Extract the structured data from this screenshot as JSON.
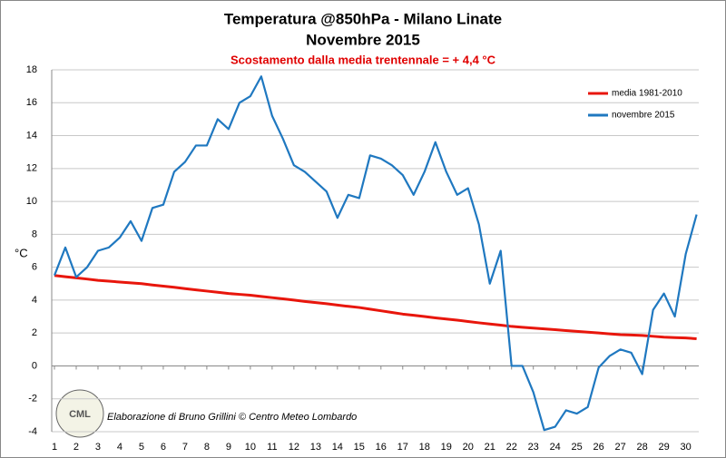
{
  "chart_data": {
    "type": "line",
    "title": "Temperatura @850hPa - Milano Linate",
    "subtitle": "Novembre 2015",
    "annotation": "Scostamento dalla media trentennale = + 4,4 °C",
    "credit": "Elaborazione di Bruno Grillini  ©  Centro Meteo Lombardo",
    "logo_text": "CML",
    "y_label": "°C",
    "x": [
      1,
      1.5,
      2,
      2.5,
      3,
      3.5,
      4,
      4.5,
      5,
      5.5,
      6,
      6.5,
      7,
      7.5,
      8,
      8.5,
      9,
      9.5,
      10,
      10.5,
      11,
      11.5,
      12,
      12.5,
      13,
      13.5,
      14,
      14.5,
      15,
      15.5,
      16,
      16.5,
      17,
      17.5,
      18,
      18.5,
      19,
      19.5,
      20,
      20.5,
      21,
      21.5,
      22,
      22.5,
      23,
      23.5,
      24,
      24.5,
      25,
      25.5,
      26,
      26.5,
      27,
      27.5,
      28,
      28.5,
      29,
      29.5,
      30,
      30.5
    ],
    "series": [
      {
        "name": "media 1981-2010",
        "color": "#e8160c",
        "values": [
          5.5,
          5.42,
          5.35,
          5.28,
          5.2,
          5.15,
          5.1,
          5.05,
          5.0,
          4.92,
          4.85,
          4.78,
          4.7,
          4.62,
          4.55,
          4.48,
          4.4,
          4.35,
          4.3,
          4.22,
          4.15,
          4.08,
          4.0,
          3.92,
          3.85,
          3.78,
          3.7,
          3.62,
          3.55,
          3.45,
          3.35,
          3.25,
          3.15,
          3.08,
          3.0,
          2.92,
          2.85,
          2.78,
          2.7,
          2.62,
          2.55,
          2.48,
          2.4,
          2.35,
          2.3,
          2.25,
          2.2,
          2.15,
          2.1,
          2.05,
          2.0,
          1.95,
          1.9,
          1.88,
          1.85,
          1.8,
          1.75,
          1.72,
          1.7,
          1.65
        ]
      },
      {
        "name": "novembre 2015",
        "color": "#1f78c0",
        "values": [
          5.5,
          7.2,
          5.4,
          6.0,
          7.0,
          7.2,
          7.8,
          8.8,
          7.6,
          9.6,
          9.8,
          11.8,
          12.4,
          13.4,
          13.4,
          15.0,
          14.4,
          16.0,
          16.4,
          17.6,
          15.2,
          13.8,
          12.2,
          11.8,
          11.2,
          10.6,
          9.0,
          10.4,
          10.2,
          12.8,
          12.6,
          12.2,
          11.6,
          10.4,
          11.8,
          13.6,
          11.8,
          10.4,
          10.8,
          8.6,
          5.0,
          7.0,
          0.0,
          0.0,
          -1.6,
          -3.9,
          -3.7,
          -2.7,
          -2.9,
          -2.5,
          -0.1,
          0.6,
          1.0,
          0.8,
          -0.5,
          3.4,
          4.4,
          3.0,
          6.8,
          9.2
        ]
      }
    ],
    "xlim": [
      1,
      30.6
    ],
    "xticks": [
      1,
      2,
      3,
      4,
      5,
      6,
      7,
      8,
      9,
      10,
      11,
      12,
      13,
      14,
      15,
      16,
      17,
      18,
      19,
      20,
      21,
      22,
      23,
      24,
      25,
      26,
      27,
      28,
      29,
      30
    ],
    "ylim": [
      -4,
      18
    ],
    "yticks": [
      -4,
      -2,
      0,
      2,
      4,
      6,
      8,
      10,
      12,
      14,
      16,
      18
    ],
    "grid": true,
    "legend": "top-right"
  }
}
